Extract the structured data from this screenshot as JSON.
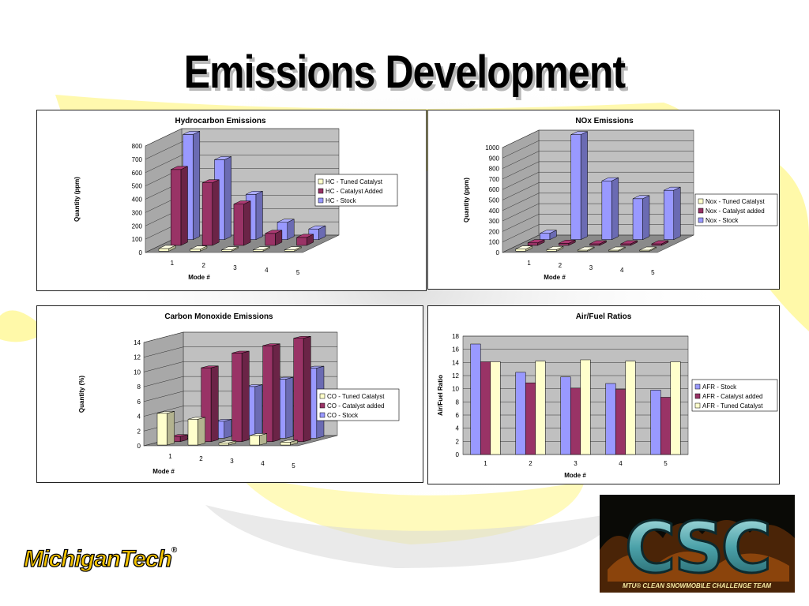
{
  "slide": {
    "title": "Emissions Development",
    "colors": {
      "tuned_catalyst": "#ffffcc",
      "catalyst_added": "#993366",
      "stock": "#9999ff",
      "wall": "#c0c0c0",
      "swoosh": "#fff8a0"
    }
  },
  "logos": {
    "michigan_tech": "MichiganTech",
    "michigan_tech_mark": "®",
    "csc_letters": "CSC",
    "csc_caption": "MTU® CLEAN SNOWMOBILE CHALLENGE TEAM"
  },
  "chart_data": [
    {
      "type": "bar",
      "variant": "3d-column",
      "title": "Hydrocarbon Emissions",
      "xlabel": "Mode #",
      "ylabel": "Quantity (ppm)",
      "categories": [
        "1",
        "2",
        "3",
        "4",
        "5"
      ],
      "ylim": [
        0,
        800
      ],
      "yticks": [
        "0",
        "100",
        "200",
        "300",
        "400",
        "500",
        "600",
        "700",
        "800"
      ],
      "legend_position": "right",
      "legend": [
        "HC - Tuned Catalyst",
        "HC - Catalyst Added",
        "HC - Stock"
      ],
      "series": [
        {
          "name": "HC - Tuned Catalyst",
          "values": [
            20,
            15,
            10,
            10,
            10
          ]
        },
        {
          "name": "HC - Catalyst Added",
          "values": [
            570,
            470,
            310,
            90,
            60
          ]
        },
        {
          "name": "HC - Stock",
          "values": [
            790,
            600,
            340,
            130,
            80
          ]
        }
      ]
    },
    {
      "type": "bar",
      "variant": "3d-column",
      "title": "NOx Emissions",
      "xlabel": "Mode #",
      "ylabel": "Quantity (ppm)",
      "categories": [
        "1",
        "2",
        "3",
        "4",
        "5"
      ],
      "ylim": [
        0,
        1000
      ],
      "yticks": [
        "0",
        "100",
        "200",
        "300",
        "400",
        "500",
        "600",
        "700",
        "800",
        "900",
        "1000"
      ],
      "legend_position": "right",
      "legend": [
        "Nox - Tuned Catalyst",
        "Nox - Catalyst added",
        "Nox - Stock"
      ],
      "series": [
        {
          "name": "Nox - Tuned Catalyst",
          "values": [
            20,
            15,
            10,
            10,
            10
          ]
        },
        {
          "name": "Nox - Catalyst added",
          "values": [
            25,
            20,
            15,
            15,
            15
          ]
        },
        {
          "name": "Nox - Stock",
          "values": [
            60,
            1000,
            560,
            390,
            470
          ]
        }
      ]
    },
    {
      "type": "bar",
      "variant": "3d-column",
      "title": "Carbon Monoxide Emissions",
      "xlabel": "Mode #",
      "ylabel": "Quantity (%)",
      "categories": [
        "1",
        "2",
        "3",
        "4",
        "5"
      ],
      "ylim": [
        0,
        14
      ],
      "yticks": [
        "0",
        "2",
        "4",
        "6",
        "8",
        "10",
        "12",
        "14"
      ],
      "legend_position": "right",
      "legend": [
        "CO - Tuned Catalyst",
        "CO - Catalyst added",
        "CO - Stock"
      ],
      "series": [
        {
          "name": "CO - Tuned Catalyst",
          "values": [
            4.3,
            3.5,
            0.3,
            1.3,
            0.4
          ]
        },
        {
          "name": "CO - Catalyst added",
          "values": [
            0.7,
            10.0,
            12.0,
            13.0,
            14.0
          ]
        },
        {
          "name": "CO - Stock",
          "values": [
            0.0,
            2.3,
            7.0,
            8.0,
            9.5
          ]
        }
      ]
    },
    {
      "type": "bar",
      "title": "Air/Fuel Ratios",
      "xlabel": "Mode #",
      "ylabel": "Air/Fuel Ratio",
      "categories": [
        "1",
        "2",
        "3",
        "4",
        "5"
      ],
      "ylim": [
        0,
        18
      ],
      "yticks": [
        "0",
        "2",
        "4",
        "6",
        "8",
        "10",
        "12",
        "14",
        "16",
        "18"
      ],
      "legend_position": "right",
      "legend": [
        "AFR - Stock",
        "AFR - Catalyst added",
        "AFR - Tuned Catalyst"
      ],
      "series": [
        {
          "name": "AFR - Stock",
          "values": [
            16.8,
            12.5,
            11.8,
            10.8,
            9.8
          ]
        },
        {
          "name": "AFR - Catalyst added",
          "values": [
            14.1,
            10.9,
            10.1,
            9.9,
            8.7
          ]
        },
        {
          "name": "AFR - Tuned Catalyst",
          "values": [
            14.1,
            14.2,
            14.4,
            14.2,
            14.1
          ]
        }
      ]
    }
  ]
}
